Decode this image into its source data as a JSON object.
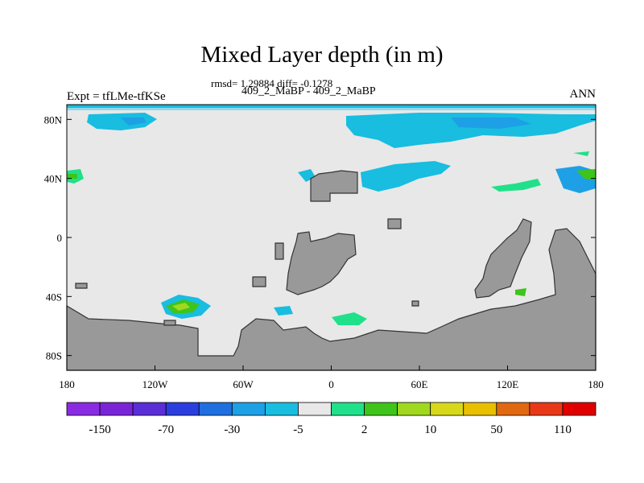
{
  "title": "Mixed Layer depth (in m)",
  "stats_text": "rmsd= 1.29884  diff= -0.1278",
  "case_text": "409_2_MaBP - 409_2_MaBP",
  "left_label": "Expt = tfLMe-tfKSe",
  "right_label": "ANN",
  "map": {
    "lat_ticks": [
      {
        "value": 80,
        "label": "80N"
      },
      {
        "value": 40,
        "label": "40N"
      },
      {
        "value": 0,
        "label": "0"
      },
      {
        "value": -40,
        "label": "40S"
      },
      {
        "value": -80,
        "label": "80S"
      }
    ],
    "lon_ticks": [
      {
        "value": -180,
        "label": "180"
      },
      {
        "value": -120,
        "label": "120W"
      },
      {
        "value": -60,
        "label": "60W"
      },
      {
        "value": 0,
        "label": "0"
      },
      {
        "value": 60,
        "label": "60E"
      },
      {
        "value": 120,
        "label": "120E"
      },
      {
        "value": 180,
        "label": "180"
      }
    ],
    "colors": {
      "ocean_background": "#e8e8e8",
      "land": "#999999",
      "land_edge": "#333333"
    }
  },
  "colorbar": {
    "colors": [
      "#8a2be2",
      "#7a24d8",
      "#5a2fd8",
      "#2a3ee0",
      "#1f6fe0",
      "#1da0e6",
      "#18bde0",
      "#e8e8e8",
      "#20e08a",
      "#3ec41a",
      "#a0d820",
      "#d8d81a",
      "#e8c000",
      "#e06810",
      "#e83818",
      "#e00000"
    ],
    "labels": [
      "-150",
      "-70",
      "-30",
      "-5",
      "2",
      "10",
      "50",
      "110"
    ]
  }
}
